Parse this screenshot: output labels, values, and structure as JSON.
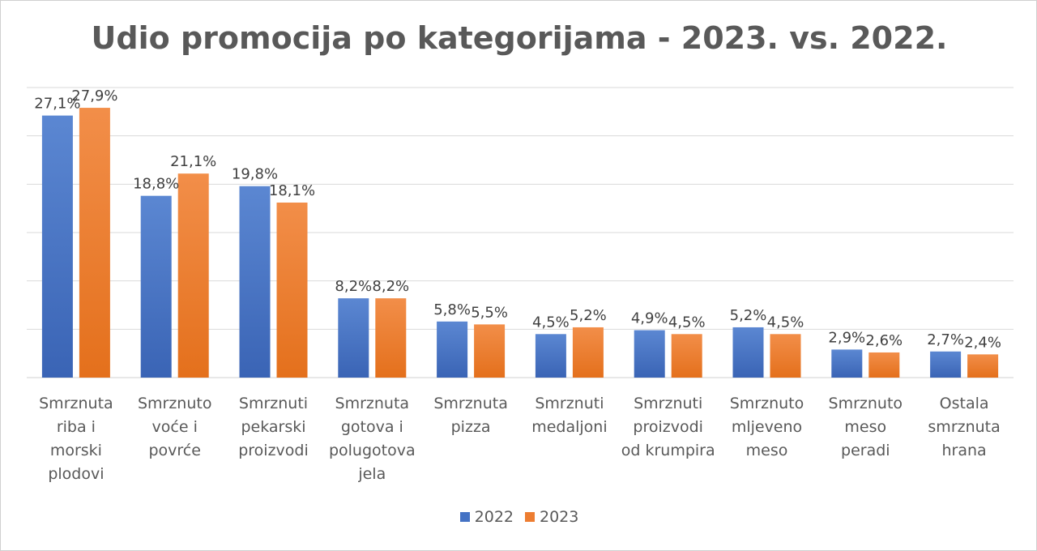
{
  "chart_data": {
    "type": "bar",
    "title": "Udio promocija po kategorijama - 2023. vs. 2022.",
    "categories": [
      "Smrznuta riba i morski plodovi",
      "Smrznuto voće i povrće",
      "Smrznuti pekarski proizvodi",
      "Smrznuta gotova i polugotova jela",
      "Smrznuta pizza",
      "Smrznuti medaljoni",
      "Smrznuti proizvodi od krumpira",
      "Smrznuto mljeveno meso",
      "Smrznuto meso peradi",
      "Ostala smrznuta hrana"
    ],
    "category_lines": [
      [
        "Smrznuta",
        "riba i",
        "morski",
        "plodovi"
      ],
      [
        "Smrznuto",
        "voće i",
        "povrće"
      ],
      [
        "Smrznuti",
        "pekarski",
        "proizvodi"
      ],
      [
        "Smrznuta",
        "gotova i",
        "polugotova",
        "jela"
      ],
      [
        "Smrznuta",
        "pizza"
      ],
      [
        "Smrznuti",
        "medaljoni"
      ],
      [
        "Smrznuti",
        "proizvodi",
        "od krumpira"
      ],
      [
        "Smrznuto",
        "mljeveno",
        "meso"
      ],
      [
        "Smrznuto",
        "meso",
        "peradi"
      ],
      [
        "Ostala",
        "smrznuta",
        "hrana"
      ]
    ],
    "series": [
      {
        "name": "2022",
        "color": "#4472c4",
        "values": [
          27.1,
          18.8,
          19.8,
          8.2,
          5.8,
          4.5,
          4.9,
          5.2,
          2.9,
          2.7
        ],
        "labels": [
          "27,1%",
          "18,8%",
          "19,8%",
          "8,2%",
          "5,8%",
          "4,5%",
          "4,9%",
          "5,2%",
          "2,9%",
          "2,7%"
        ]
      },
      {
        "name": "2023",
        "color": "#ed7d31",
        "values": [
          27.9,
          21.1,
          18.1,
          8.2,
          5.5,
          5.2,
          4.5,
          4.5,
          2.6,
          2.4
        ],
        "labels": [
          "27,9%",
          "21,1%",
          "18,1%",
          "8,2%",
          "5,5%",
          "5,2%",
          "4,5%",
          "4,5%",
          "2,6%",
          "2,4%"
        ]
      }
    ],
    "ylim": [
      0,
      30
    ],
    "y_gridlines": [
      0,
      5,
      10,
      15,
      20,
      25,
      30
    ],
    "grid": true,
    "y_axis_labels_visible": false,
    "legend_position": "bottom"
  }
}
